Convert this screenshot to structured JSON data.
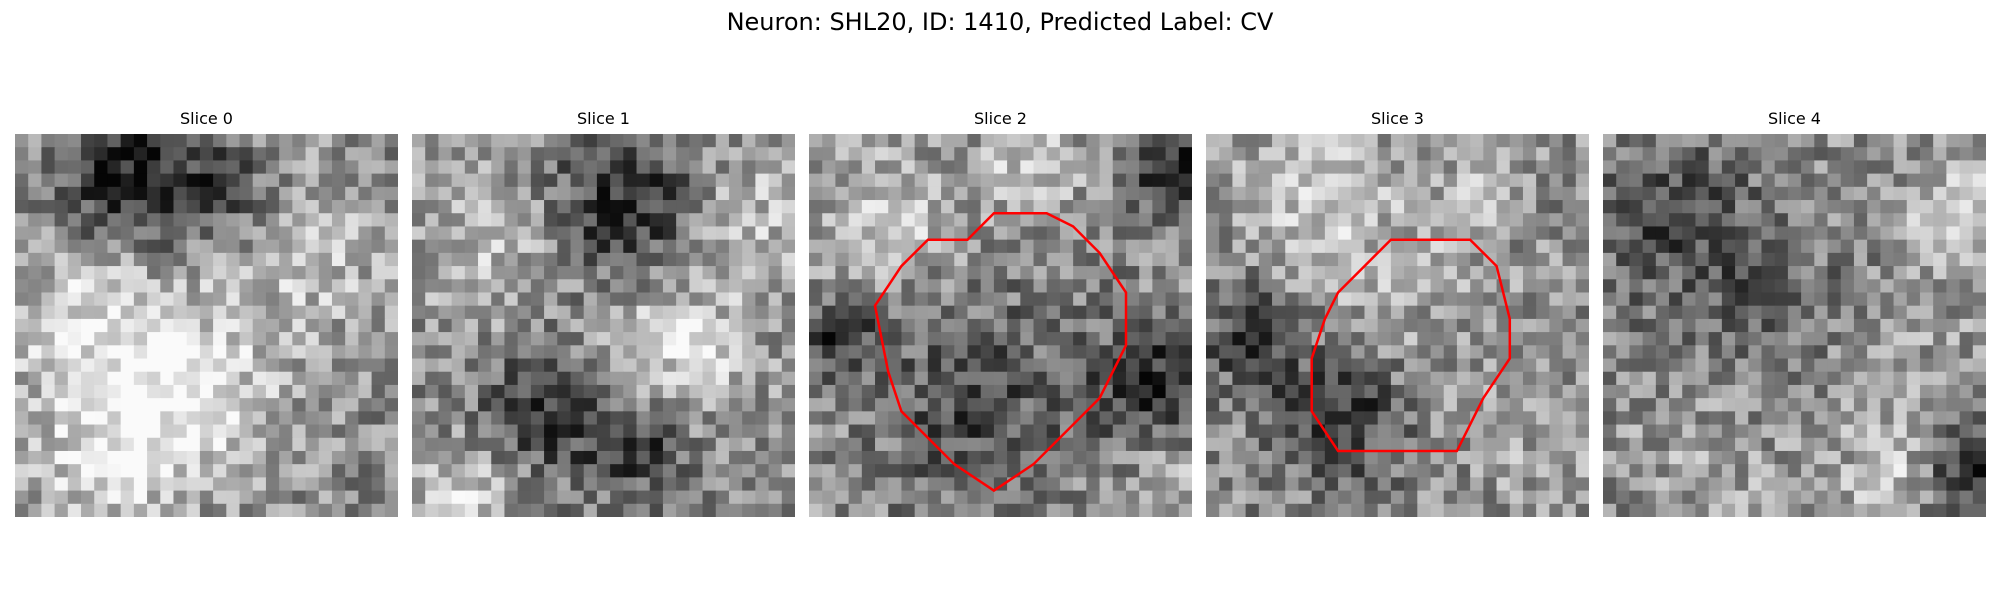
{
  "figure": {
    "title": "Neuron: SHL20, ID: 1410, Predicted Label: CV"
  },
  "slices": [
    {
      "title": "Slice 0",
      "has_contour": false
    },
    {
      "title": "Slice 1",
      "has_contour": false
    },
    {
      "title": "Slice 2",
      "has_contour": true
    },
    {
      "title": "Slice 3",
      "has_contour": true
    },
    {
      "title": "Slice 4",
      "has_contour": false
    }
  ],
  "contour_color": "#ff0000",
  "colormap": "gray"
}
